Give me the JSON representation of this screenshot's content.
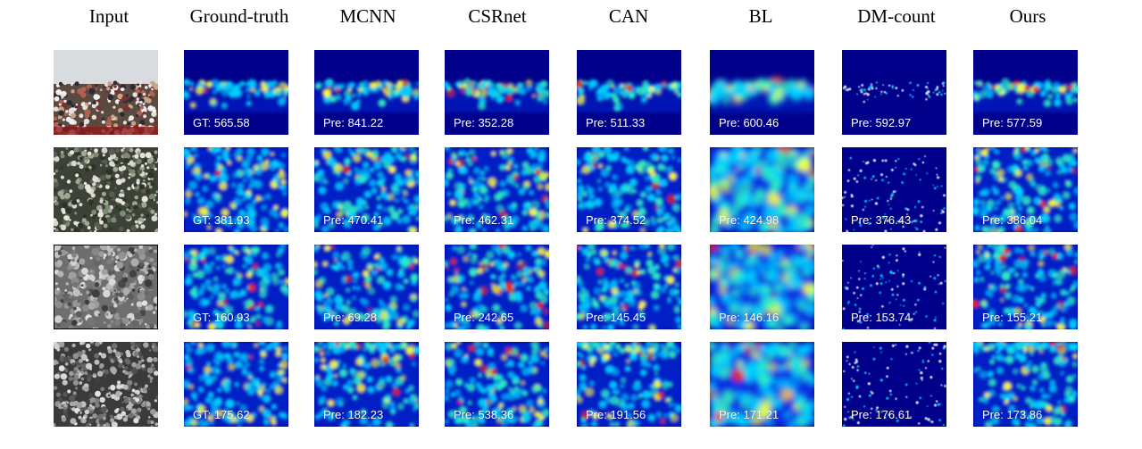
{
  "columns": [
    {
      "key": "input",
      "header": "Input"
    },
    {
      "key": "gt",
      "header": "Ground-truth"
    },
    {
      "key": "mcnn",
      "header": "MCNN"
    },
    {
      "key": "csrnet",
      "header": "CSRnet"
    },
    {
      "key": "can",
      "header": "CAN"
    },
    {
      "key": "bl",
      "header": "BL"
    },
    {
      "key": "dmcount",
      "header": "DM-count"
    },
    {
      "key": "ours",
      "header": "Ours"
    }
  ],
  "rows": [
    {
      "labels": {
        "gt": "GT: 565.58",
        "mcnn": "Pre: 841.22",
        "csrnet": "Pre: 352.28",
        "can": "Pre: 511.33",
        "bl": "Pre: 600.46",
        "dmcount": "Pre: 592.97",
        "ours": "Pre: 577.59"
      }
    },
    {
      "labels": {
        "gt": "GT: 381.93",
        "mcnn": "Pre: 470.41",
        "csrnet": "Pre: 462.31",
        "can": "Pre: 374.52",
        "bl": "Pre: 424.98",
        "dmcount": "Pre: 376.43",
        "ours": "Pre: 386.04"
      }
    },
    {
      "labels": {
        "gt": "GT: 160.93",
        "mcnn": "Pre: 69.28",
        "csrnet": "Pre: 242.65",
        "can": "Pre: 145.45",
        "bl": "Pre: 146.16",
        "dmcount": "Pre: 153.74",
        "ours": "Pre: 155.21"
      }
    },
    {
      "labels": {
        "gt": "GT: 175.62",
        "mcnn": "Pre: 182.23",
        "csrnet": "Pre: 538.36",
        "can": "Pre: 191.56",
        "bl": "Pre: 171.21",
        "dmcount": "Pre: 176.61",
        "ours": "Pre: 173.86"
      }
    }
  ],
  "colors": {
    "density_background": "#00008b",
    "density_low": "#0a3cff",
    "density_mid": "#00d0ff",
    "density_high": "#ffff30",
    "density_peak": "#ff2000"
  }
}
